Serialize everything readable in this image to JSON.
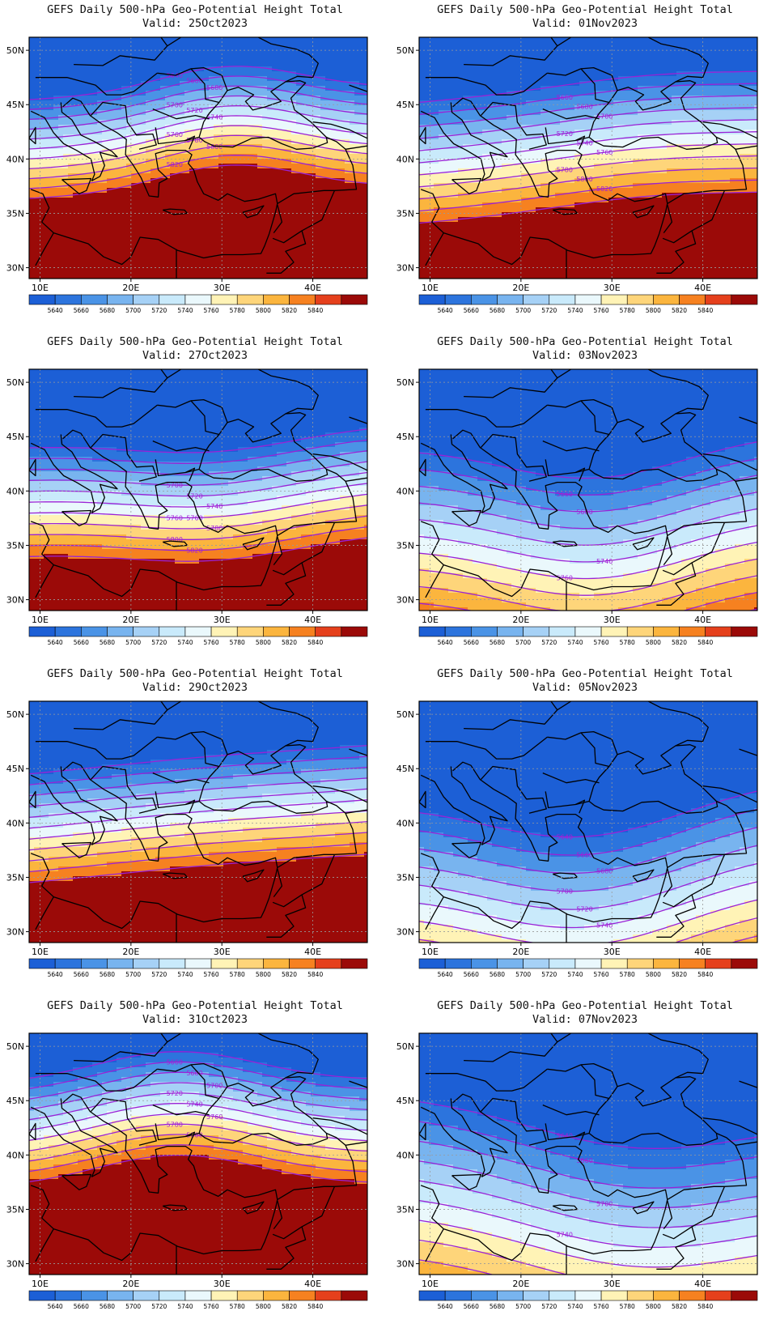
{
  "figure": {
    "colorbar_labels": [
      "5640",
      "5660",
      "5680",
      "5700",
      "5720",
      "5740",
      "5760",
      "5780",
      "5800",
      "5820",
      "5840"
    ],
    "palette": {
      "below": "#1c5fd6",
      "bands": [
        "#2c74dd",
        "#4a93e6",
        "#78b4ef",
        "#a6d1f6",
        "#c9eafb",
        "#eaf8fc",
        "#fff3b6",
        "#fed57a",
        "#fbb53e",
        "#f68120",
        "#e5401c",
        "#c4150f"
      ],
      "above": "#9b0a08",
      "contour": "#9a22d6",
      "contour_label": "#a41fd8"
    },
    "lon_ticks": [
      "10E",
      "20E",
      "30E",
      "40E"
    ],
    "lat_ticks": [
      "50N",
      "45N",
      "40N",
      "35N",
      "30N"
    ]
  },
  "panels": [
    {
      "title": "GEFS Daily 500-hPa Geo-Potential Height Total",
      "valid": "Valid: 25Oct2023",
      "contour_labels": [
        "5640",
        "5660",
        "5680",
        "5700",
        "5720",
        "5740",
        "5760",
        "5780",
        "5800",
        "5820"
      ]
    },
    {
      "title": "GEFS Daily 500-hPa Geo-Potential Height Total",
      "valid": "Valid: 01Nov2023",
      "contour_labels": [
        "5660",
        "5680",
        "5700",
        "5720",
        "5740",
        "5760",
        "5780",
        "5800",
        "5820"
      ]
    },
    {
      "title": "GEFS Daily 500-hPa Geo-Potential Height Total",
      "valid": "Valid: 27Oct2023",
      "contour_labels": [
        "5700",
        "5720",
        "5740",
        "5760",
        "5760",
        "5780",
        "5800",
        "5820"
      ]
    },
    {
      "title": "GEFS Daily 500-hPa Geo-Potential Height Total",
      "valid": "Valid: 03Nov2023",
      "contour_labels": [
        "5660",
        "5680",
        "5740",
        "5760"
      ]
    },
    {
      "title": "GEFS Daily 500-hPa Geo-Potential Height Total",
      "valid": "Valid: 29Oct2023",
      "contour_labels": []
    },
    {
      "title": "GEFS Daily 500-hPa Geo-Potential Height Total",
      "valid": "Valid: 05Nov2023",
      "contour_labels": [
        "5640",
        "5660",
        "5680",
        "5700",
        "5720",
        "5740"
      ]
    },
    {
      "title": "GEFS Daily 500-hPa Geo-Potential Height Total",
      "valid": "Valid: 31Oct2023",
      "contour_labels": [
        "5660",
        "5680",
        "5700",
        "5720",
        "5740",
        "5760",
        "5780",
        "5800"
      ]
    },
    {
      "title": "GEFS Daily 500-hPa Geo-Potential Height Total",
      "valid": "Valid: 07Nov2023",
      "contour_labels": [
        "5640",
        "5660",
        "5700",
        "5740"
      ]
    }
  ]
}
